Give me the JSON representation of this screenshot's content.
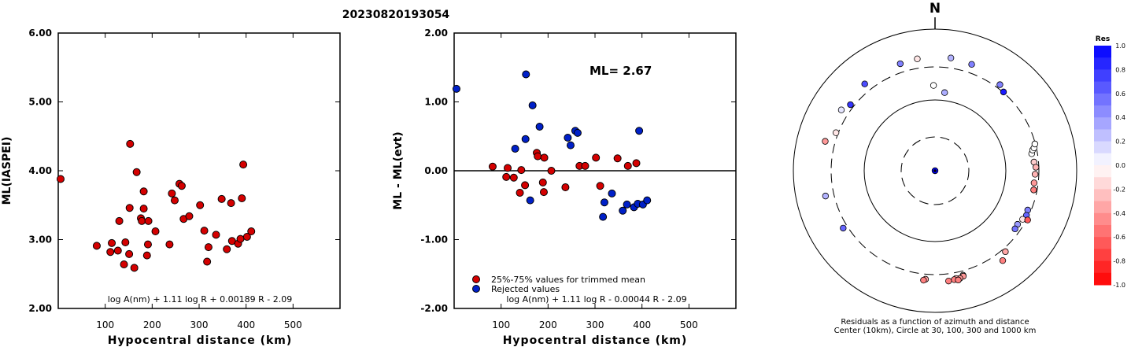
{
  "page_title": "20230820193054",
  "chart_data": [
    {
      "type": "scatter",
      "id": "ml-vs-distance",
      "xlabel": "Hypocentral distance (km)",
      "ylabel": "ML(IASPEI)",
      "xlim": [
        0,
        600
      ],
      "ylim": [
        2.0,
        6.0
      ],
      "x_ticks": [
        "100",
        "200",
        "300",
        "400",
        "500"
      ],
      "y_ticks": [
        "2.00",
        "3.00",
        "4.00",
        "5.00",
        "6.00"
      ],
      "formula": "log A(nm) + 1.11 log R + 0.00189 R - 2.09",
      "points": [
        {
          "x": 5,
          "y": 3.88
        },
        {
          "x": 82,
          "y": 2.91
        },
        {
          "x": 111,
          "y": 2.82
        },
        {
          "x": 114,
          "y": 2.95
        },
        {
          "x": 127,
          "y": 2.84
        },
        {
          "x": 130,
          "y": 3.27
        },
        {
          "x": 140,
          "y": 2.64
        },
        {
          "x": 143,
          "y": 2.96
        },
        {
          "x": 151,
          "y": 2.79
        },
        {
          "x": 152,
          "y": 3.46
        },
        {
          "x": 153,
          "y": 4.39
        },
        {
          "x": 162,
          "y": 2.59
        },
        {
          "x": 167,
          "y": 3.98
        },
        {
          "x": 176,
          "y": 3.31
        },
        {
          "x": 178,
          "y": 3.27
        },
        {
          "x": 182,
          "y": 3.45
        },
        {
          "x": 182,
          "y": 3.7
        },
        {
          "x": 189,
          "y": 2.77
        },
        {
          "x": 191,
          "y": 2.93
        },
        {
          "x": 192,
          "y": 3.27
        },
        {
          "x": 207,
          "y": 3.12
        },
        {
          "x": 237,
          "y": 2.93
        },
        {
          "x": 242,
          "y": 3.67
        },
        {
          "x": 248,
          "y": 3.57
        },
        {
          "x": 258,
          "y": 3.81
        },
        {
          "x": 263,
          "y": 3.78
        },
        {
          "x": 267,
          "y": 3.3
        },
        {
          "x": 279,
          "y": 3.34
        },
        {
          "x": 302,
          "y": 3.5
        },
        {
          "x": 311,
          "y": 3.13
        },
        {
          "x": 317,
          "y": 2.68
        },
        {
          "x": 320,
          "y": 2.89
        },
        {
          "x": 336,
          "y": 3.07
        },
        {
          "x": 348,
          "y": 3.59
        },
        {
          "x": 359,
          "y": 2.86
        },
        {
          "x": 368,
          "y": 3.53
        },
        {
          "x": 370,
          "y": 2.98
        },
        {
          "x": 383,
          "y": 2.94
        },
        {
          "x": 388,
          "y": 3.01
        },
        {
          "x": 391,
          "y": 3.6
        },
        {
          "x": 394,
          "y": 4.09
        },
        {
          "x": 402,
          "y": 3.04
        },
        {
          "x": 411,
          "y": 3.12
        }
      ]
    },
    {
      "type": "scatter",
      "id": "residual-vs-distance",
      "xlabel": "Hypocentral distance (km)",
      "ylabel": "ML - ML(evt)",
      "xlim": [
        0,
        600
      ],
      "ylim": [
        -2.0,
        2.0
      ],
      "x_ticks": [
        "100",
        "200",
        "300",
        "400",
        "500"
      ],
      "y_ticks": [
        "-2.00",
        "-1.00",
        "0.00",
        "1.00",
        "2.00"
      ],
      "annotation": "ML= 2.67",
      "formula": "log A(nm) + 1.11 log R - 0.00044 R - 2.09",
      "legend": [
        {
          "label": "25%-75% values for trimmed mean",
          "color": "#d40000"
        },
        {
          "label": "Rejected values",
          "color": "#0020c8"
        }
      ],
      "series": [
        {
          "name": "25%-75% values for trimmed mean",
          "points": [
            {
              "x": 82,
              "y": 0.06
            },
            {
              "x": 111,
              "y": -0.09
            },
            {
              "x": 114,
              "y": 0.04
            },
            {
              "x": 127,
              "y": -0.1
            },
            {
              "x": 140,
              "y": -0.32
            },
            {
              "x": 143,
              "y": 0.01
            },
            {
              "x": 151,
              "y": -0.21
            },
            {
              "x": 176,
              "y": 0.26
            },
            {
              "x": 178,
              "y": 0.21
            },
            {
              "x": 189,
              "y": -0.17
            },
            {
              "x": 191,
              "y": -0.31
            },
            {
              "x": 192,
              "y": 0.19
            },
            {
              "x": 207,
              "y": 0.0
            },
            {
              "x": 237,
              "y": -0.24
            },
            {
              "x": 267,
              "y": 0.07
            },
            {
              "x": 279,
              "y": 0.07
            },
            {
              "x": 302,
              "y": 0.19
            },
            {
              "x": 311,
              "y": -0.22
            },
            {
              "x": 348,
              "y": 0.18
            },
            {
              "x": 370,
              "y": 0.07
            },
            {
              "x": 388,
              "y": 0.11
            }
          ]
        },
        {
          "name": "Rejected values",
          "points": [
            {
              "x": 5,
              "y": 1.19
            },
            {
              "x": 130,
              "y": 0.32
            },
            {
              "x": 152,
              "y": 0.46
            },
            {
              "x": 153,
              "y": 1.4
            },
            {
              "x": 162,
              "y": -0.43
            },
            {
              "x": 167,
              "y": 0.95
            },
            {
              "x": 182,
              "y": 0.64
            },
            {
              "x": 242,
              "y": 0.48
            },
            {
              "x": 248,
              "y": 0.37
            },
            {
              "x": 258,
              "y": 0.58
            },
            {
              "x": 263,
              "y": 0.55
            },
            {
              "x": 317,
              "y": -0.67
            },
            {
              "x": 320,
              "y": -0.46
            },
            {
              "x": 336,
              "y": -0.33
            },
            {
              "x": 359,
              "y": -0.58
            },
            {
              "x": 368,
              "y": -0.49
            },
            {
              "x": 383,
              "y": -0.53
            },
            {
              "x": 391,
              "y": -0.48
            },
            {
              "x": 394,
              "y": 0.58
            },
            {
              "x": 402,
              "y": -0.49
            },
            {
              "x": 411,
              "y": -0.43
            }
          ]
        }
      ]
    },
    {
      "type": "scatter",
      "id": "residual-azimuth-map",
      "north_label": "N",
      "caption_line1": "Residuals as a function of azimuth and distance",
      "caption_line2": "Center (10km), Circle at 30, 100, 300 and 1000 km",
      "colorbar_title": "Res",
      "colorbar_ticks": [
        "1.0",
        "0.8",
        "0.6",
        "0.4",
        "0.2",
        "0.0",
        "-0.2",
        "-0.4",
        "-0.6",
        "-0.8",
        "-1.0"
      ],
      "colorbar_range": [
        -1.0,
        1.0
      ],
      "points": [
        {
          "azimuth": -93,
          "distance": 5,
          "res": 1.0
        },
        {
          "azimuth": 7,
          "distance": 130,
          "res": 0.32
        },
        {
          "azimuth": -1,
          "distance": 162,
          "res": 0.0
        },
        {
          "azimuth": -18,
          "distance": 395,
          "res": 0.5
        },
        {
          "azimuth": -9,
          "distance": 405,
          "res": -0.1
        },
        {
          "azimuth": 8,
          "distance": 413,
          "res": 0.3
        },
        {
          "azimuth": 19,
          "distance": 395,
          "res": 0.5
        },
        {
          "azimuth": 37,
          "distance": 340,
          "res": 0.5
        },
        {
          "azimuth": -39,
          "distance": 385,
          "res": 0.7
        },
        {
          "azimuth": -57,
          "distance": 385,
          "res": 0.1
        },
        {
          "azimuth": -52,
          "distance": 335,
          "res": 0.8
        },
        {
          "azimuth": -69,
          "distance": 322,
          "res": -0.1
        },
        {
          "azimuth": -75,
          "distance": 410,
          "res": -0.4
        },
        {
          "azimuth": -103,
          "distance": 393,
          "res": 0.3
        },
        {
          "azimuth": -122,
          "distance": 345,
          "res": 0.6
        },
        {
          "azimuth": 41,
          "distance": 305,
          "res": 0.9
        },
        {
          "azimuth": 80,
          "distance": 248,
          "res": 0.0
        },
        {
          "azimuth": 78,
          "distance": 262,
          "res": 0.0
        },
        {
          "azimuth": 77,
          "distance": 278,
          "res": 0.0
        },
        {
          "azimuth": 75,
          "distance": 295,
          "res": 0.0
        },
        {
          "azimuth": 85,
          "distance": 258,
          "res": -0.2
        },
        {
          "azimuth": 88,
          "distance": 272,
          "res": -0.3
        },
        {
          "azimuth": 92,
          "distance": 265,
          "res": -0.3
        },
        {
          "azimuth": 97,
          "distance": 262,
          "res": -0.4
        },
        {
          "azimuth": 101,
          "distance": 268,
          "res": -0.5
        },
        {
          "azimuth": 113,
          "distance": 270,
          "res": 0.5
        },
        {
          "azimuth": 116,
          "distance": 279,
          "res": 0.6
        },
        {
          "azimuth": 119,
          "distance": 265,
          "res": -0.1
        },
        {
          "azimuth": 123,
          "distance": 250,
          "res": 0.4
        },
        {
          "azimuth": 126,
          "distance": 254,
          "res": 0.55
        },
        {
          "azimuth": 118,
          "distance": 310,
          "res": -0.65
        },
        {
          "azimuth": 139,
          "distance": 334,
          "res": -0.35
        },
        {
          "azimuth": 143,
          "distance": 395,
          "res": -0.5
        },
        {
          "azimuth": 165,
          "distance": 345,
          "res": 0.0
        },
        {
          "azimuth": 165,
          "distance": 355,
          "res": -0.4
        },
        {
          "azimuth": 167,
          "distance": 370,
          "res": -0.4
        },
        {
          "azimuth": 169,
          "distance": 362,
          "res": -0.3
        },
        {
          "azimuth": 170,
          "distance": 372,
          "res": -0.5
        },
        {
          "azimuth": 173,
          "distance": 378,
          "res": -0.5
        },
        {
          "azimuth": 168,
          "distance": 385,
          "res": -0.5
        },
        {
          "azimuth": 185,
          "distance": 352,
          "res": -0.35
        },
        {
          "azimuth": 186,
          "distance": 365,
          "res": -0.5
        }
      ]
    }
  ]
}
